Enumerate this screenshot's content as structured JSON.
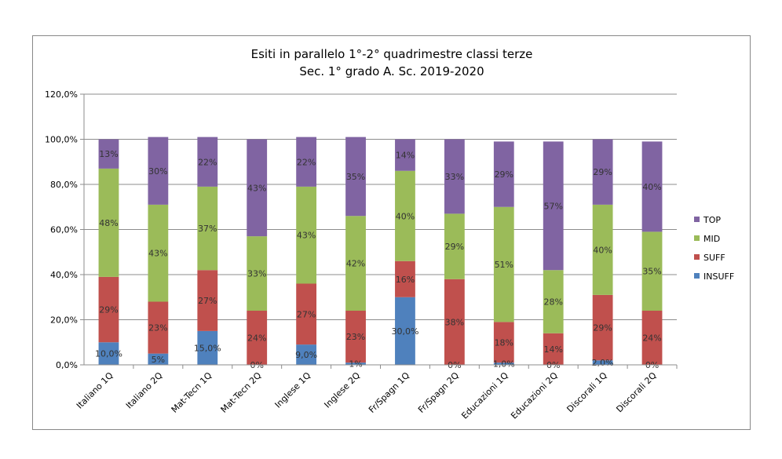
{
  "chart_data": {
    "type": "bar",
    "stacked": true,
    "title": "Esiti in parallelo 1°-2° quadrimestre classi terze",
    "subtitle": "Sec. 1° grado A. Sc. 2019-2020",
    "categories": [
      "Italiano 1Q",
      "Italiano 2Q",
      "Mat-Tecn 1Q",
      "Mat-Tecn 2Q",
      "Inglese 1Q",
      "Inglese 2Q",
      "Fr/Spagn 1Q",
      "Fr/Spagn 2Q",
      "Educazioni 1Q",
      "Educazioni 2Q",
      "Discorali 1Q",
      "Discorali 2Q"
    ],
    "ylim": [
      0,
      120
    ],
    "yticks": [
      "0,0%",
      "20,0%",
      "40,0%",
      "60,0%",
      "80,0%",
      "100,0%",
      "120,0%"
    ],
    "grid": true,
    "legend_position": "right",
    "series": [
      {
        "name": "INSUFF",
        "color": "#4F81BD",
        "values": [
          10,
          5,
          15,
          0,
          9,
          1,
          30,
          0,
          1,
          0,
          2,
          0
        ],
        "labels": [
          "10,0%",
          "5%",
          "15,0%",
          "0%",
          "9,0%",
          "1%",
          "30,0%",
          "0%",
          "1,0%",
          "0%",
          "2,0%",
          "0%"
        ]
      },
      {
        "name": "SUFF",
        "color": "#C0504D",
        "values": [
          29,
          23,
          27,
          24,
          27,
          23,
          16,
          38,
          18,
          14,
          29,
          24
        ],
        "labels": [
          "29%",
          "23%",
          "27%",
          "24%",
          "27%",
          "23%",
          "16%",
          "38%",
          "18%",
          "14%",
          "29%",
          "24%"
        ]
      },
      {
        "name": "MID",
        "color": "#9BBB59",
        "values": [
          48,
          43,
          37,
          33,
          43,
          42,
          40,
          29,
          51,
          28,
          40,
          35
        ],
        "labels": [
          "48%",
          "43%",
          "37%",
          "33%",
          "43%",
          "42%",
          "40%",
          "29%",
          "51%",
          "28%",
          "40%",
          "35%"
        ]
      },
      {
        "name": "TOP",
        "color": "#8064A2",
        "values": [
          13,
          30,
          22,
          43,
          22,
          35,
          14,
          33,
          29,
          57,
          29,
          40
        ],
        "labels": [
          "13%",
          "30%",
          "22%",
          "43%",
          "22%",
          "35%",
          "14%",
          "33%",
          "29%",
          "57%",
          "29%",
          "40%"
        ]
      }
    ],
    "legend_order": [
      "TOP",
      "MID",
      "SUFF",
      "INSUFF"
    ]
  }
}
